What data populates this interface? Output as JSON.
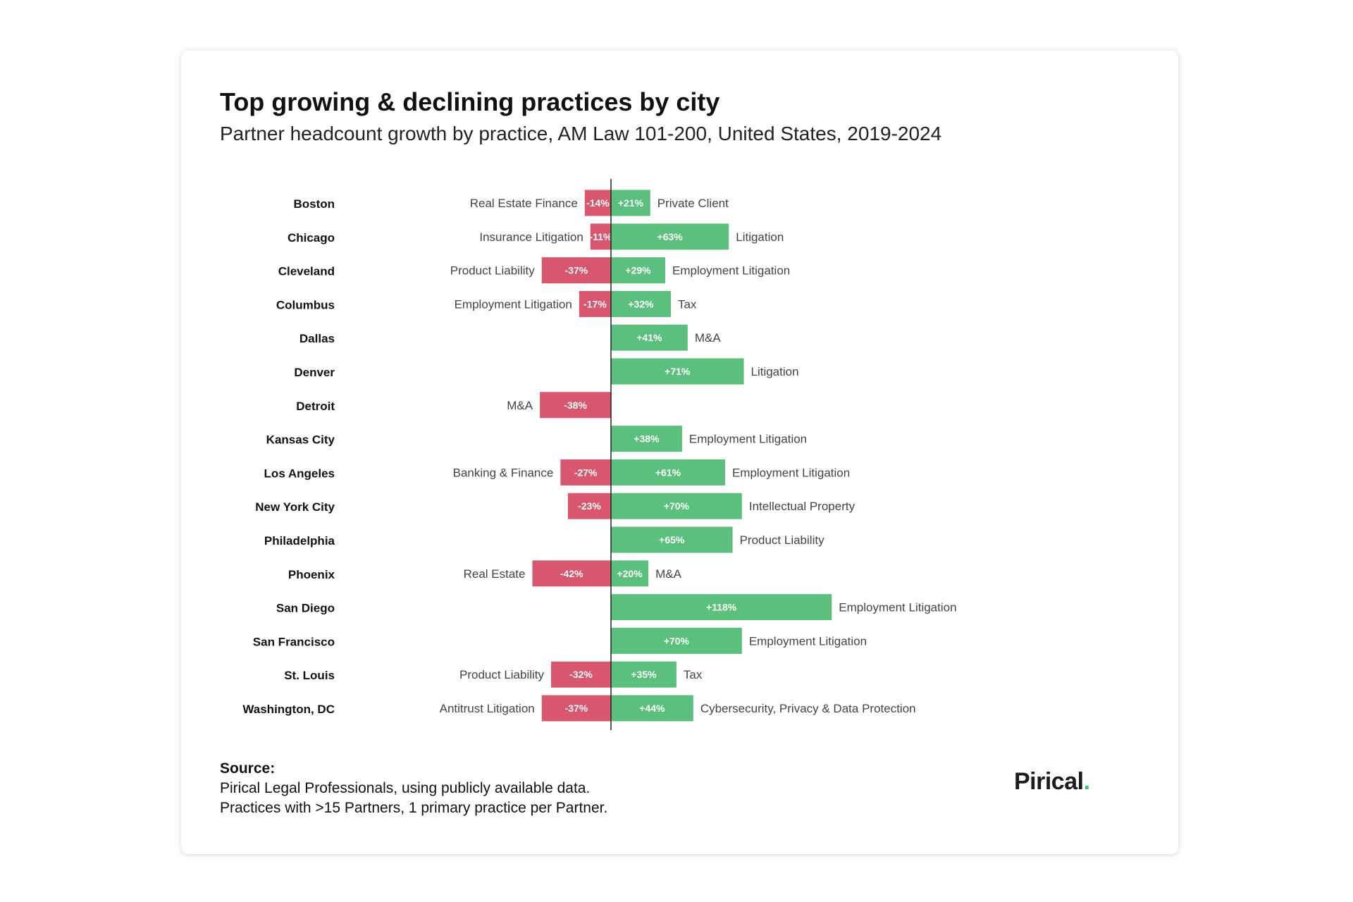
{
  "header": {
    "title": "Top growing & declining practices by city",
    "subtitle": "Partner headcount growth by practice, AM Law 101-200, United States, 2019-2024"
  },
  "source": {
    "heading": "Source:",
    "lines": [
      "Pirical Legal Professionals, using publicly available data.",
      "Practices with >15 Partners, 1 primary practice per Partner."
    ]
  },
  "logo": {
    "text": "Pirical",
    "dot": "."
  },
  "colors": {
    "growth": "#5bbf7d",
    "decline": "#d9566f",
    "axis": "#222222"
  },
  "chart_data": {
    "type": "bar",
    "orientation": "horizontal-diverging",
    "unit": "%",
    "categories": [
      "Boston",
      "Chicago",
      "Cleveland",
      "Columbus",
      "Dallas",
      "Denver",
      "Detroit",
      "Kansas City",
      "Los Angeles",
      "New York City",
      "Philadelphia",
      "Phoenix",
      "San Diego",
      "San Francisco",
      "St. Louis",
      "Washington, DC"
    ],
    "series": [
      {
        "values": [
          -14,
          -11,
          -37,
          -17,
          null,
          null,
          -38,
          null,
          -27,
          -23,
          null,
          -42,
          null,
          null,
          -32,
          -37
        ],
        "labels": [
          "-14%",
          "-11%",
          "-37%",
          "-17%",
          "",
          "",
          "-38%",
          "",
          "-27%",
          "-23%",
          "",
          "-42%",
          "",
          "",
          "-32%",
          "-37%"
        ],
        "practices": [
          "Real Estate Finance",
          "Insurance Litigation",
          "Product Liability",
          "Employment Litigation",
          "",
          "",
          "M&A",
          "",
          "Banking & Finance",
          "",
          "",
          "Real Estate",
          "",
          "",
          "Product Liability",
          "Antitrust Litigation"
        ]
      },
      {
        "values": [
          21,
          63,
          29,
          32,
          41,
          71,
          null,
          38,
          61,
          70,
          65,
          20,
          118,
          70,
          35,
          44
        ],
        "labels": [
          "+21%",
          "+63%",
          "+29%",
          "+32%",
          "+41%",
          "+71%",
          "",
          "+38%",
          "+61%",
          "+70%",
          "+65%",
          "+20%",
          "+118%",
          "+70%",
          "+35%",
          "+44%"
        ],
        "practices": [
          "Private Client",
          "Litigation",
          "Employment Litigation",
          "Tax",
          "M&A",
          "Litigation",
          "",
          "Employment Litigation",
          "Employment Litigation",
          "Intellectual Property",
          "Product Liability",
          "M&A",
          "Employment Litigation",
          "Employment Litigation",
          "Tax",
          "Cybersecurity, Privacy & Data Protection"
        ]
      }
    ],
    "grid": false,
    "legend": "none"
  }
}
